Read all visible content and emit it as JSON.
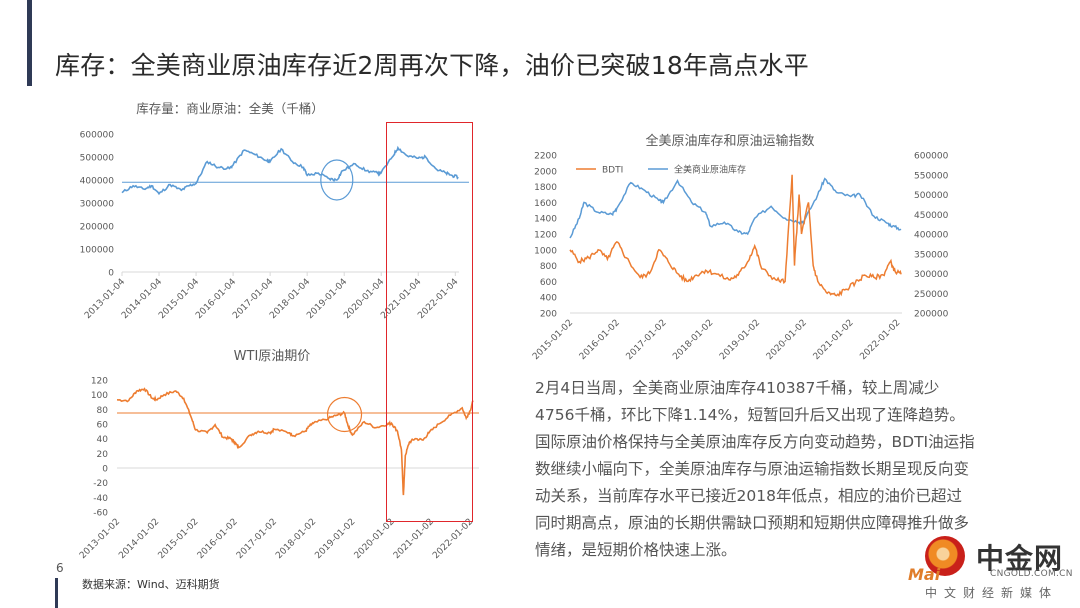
{
  "slide": {
    "title": "库存：全美商业原油库存近2周再次下降，油价已突破18年高点水平",
    "page_number": "6",
    "source": "数据来源：Wind、迈科期货",
    "paragraph": "2月4日当周，全美商业原油库存410387千桶，较上周减少4756千桶，环比下降1.14%，短暂回升后又出现了连降趋势。国际原油价格保持与全美原油库存反方向变动趋势，BDTI油运指数继续小幅向下，全美原油库存与原油运输指数长期呈现反向变动关系，当前库存水平已接近2018年低点，相应的油价已超过同时期高点，原油的长期供需缺口预期和短期供应障碍推升做多情绪，是短期价格快速上涨。"
  },
  "logo": {
    "cn": "中金网",
    "url": "CNGOLD.COM.CN",
    "sub": "中文财经新媒体",
    "brand": "Mai"
  },
  "colors": {
    "blue": "#5b9bd5",
    "orange": "#ed7d31",
    "red_box": "#e0262b",
    "axis_text": "#595959",
    "grid": "#d9d9d9"
  },
  "chart_data": [
    {
      "id": "inventory",
      "type": "line",
      "title": "库存量：商业原油：全美（千桶）",
      "x_ticks": [
        "2013-01-04",
        "2014-01-04",
        "2015-01-04",
        "2016-01-04",
        "2017-01-04",
        "2018-01-04",
        "2019-01-04",
        "2020-01-04",
        "2021-01-04",
        "2022-01-04"
      ],
      "xlim": [
        2013.0,
        2022.1
      ],
      "ylim": [
        0,
        600000
      ],
      "y_ticks": [
        0,
        100000,
        200000,
        300000,
        400000,
        500000,
        600000
      ],
      "reference_line": 390000,
      "highlight_circle": {
        "x": 2018.8,
        "y": 400000
      },
      "series": [
        {
          "points": [
            [
              2013.0,
              345000
            ],
            [
              2013.3,
              375000
            ],
            [
              2013.6,
              360000
            ],
            [
              2013.8,
              375000
            ],
            [
              2014.0,
              340000
            ],
            [
              2014.3,
              380000
            ],
            [
              2014.6,
              355000
            ],
            [
              2014.8,
              375000
            ],
            [
              2015.0,
              385000
            ],
            [
              2015.3,
              480000
            ],
            [
              2015.6,
              455000
            ],
            [
              2015.9,
              450000
            ],
            [
              2016.0,
              465000
            ],
            [
              2016.3,
              530000
            ],
            [
              2016.6,
              510000
            ],
            [
              2016.9,
              485000
            ],
            [
              2017.0,
              480000
            ],
            [
              2017.3,
              535000
            ],
            [
              2017.6,
              480000
            ],
            [
              2017.9,
              455000
            ],
            [
              2018.0,
              420000
            ],
            [
              2018.3,
              430000
            ],
            [
              2018.6,
              405000
            ],
            [
              2018.8,
              400000
            ],
            [
              2018.95,
              440000
            ],
            [
              2019.3,
              470000
            ],
            [
              2019.6,
              440000
            ],
            [
              2019.9,
              430000
            ],
            [
              2020.0,
              432000
            ],
            [
              2020.3,
              500000
            ],
            [
              2020.45,
              540000
            ],
            [
              2020.7,
              505000
            ],
            [
              2021.0,
              495000
            ],
            [
              2021.2,
              500000
            ],
            [
              2021.5,
              445000
            ],
            [
              2021.75,
              430000
            ],
            [
              2021.9,
              420000
            ],
            [
              2022.08,
              412000
            ]
          ]
        }
      ]
    },
    {
      "id": "wti",
      "type": "line",
      "title": "WTI原油期价",
      "x_ticks": [
        "2013-01-02",
        "2014-01-02",
        "2015-01-02",
        "2016-01-02",
        "2017-01-02",
        "2018-01-02",
        "2019-01-02",
        "2020-01-02",
        "2021-01-02",
        "2022-01-02"
      ],
      "xlim": [
        2013.0,
        2022.1
      ],
      "ylim": [
        -60,
        120
      ],
      "y_ticks": [
        -60,
        -40,
        -20,
        0,
        20,
        40,
        60,
        80,
        100,
        120
      ],
      "reference_line": 75,
      "highlight_circle": {
        "x": 2018.8,
        "y": 73
      },
      "highlight_box": {
        "x0": 2020.0,
        "x1": 2022.05
      },
      "series": [
        {
          "points": [
            [
              2013.0,
              93
            ],
            [
              2013.3,
              92
            ],
            [
              2013.5,
              105
            ],
            [
              2013.7,
              108
            ],
            [
              2013.9,
              95
            ],
            [
              2014.0,
              93
            ],
            [
              2014.2,
              100
            ],
            [
              2014.5,
              105
            ],
            [
              2014.7,
              95
            ],
            [
              2014.9,
              68
            ],
            [
              2015.0,
              52
            ],
            [
              2015.3,
              48
            ],
            [
              2015.5,
              59
            ],
            [
              2015.7,
              42
            ],
            [
              2015.9,
              40
            ],
            [
              2016.0,
              35
            ],
            [
              2016.1,
              28
            ],
            [
              2016.4,
              45
            ],
            [
              2016.6,
              50
            ],
            [
              2016.9,
              48
            ],
            [
              2017.0,
              53
            ],
            [
              2017.4,
              48
            ],
            [
              2017.5,
              44
            ],
            [
              2017.8,
              50
            ],
            [
              2017.9,
              57
            ],
            [
              2018.0,
              61
            ],
            [
              2018.4,
              68
            ],
            [
              2018.6,
              72
            ],
            [
              2018.8,
              75
            ],
            [
              2018.9,
              56
            ],
            [
              2019.0,
              45
            ],
            [
              2019.3,
              63
            ],
            [
              2019.6,
              55
            ],
            [
              2019.9,
              60
            ],
            [
              2020.0,
              61
            ],
            [
              2020.15,
              50
            ],
            [
              2020.25,
              25
            ],
            [
              2020.3,
              -37
            ],
            [
              2020.35,
              17
            ],
            [
              2020.45,
              35
            ],
            [
              2020.6,
              40
            ],
            [
              2020.8,
              38
            ],
            [
              2020.95,
              48
            ],
            [
              2021.2,
              60
            ],
            [
              2021.5,
              72
            ],
            [
              2021.8,
              82
            ],
            [
              2021.9,
              68
            ],
            [
              2022.0,
              78
            ],
            [
              2022.08,
              92
            ]
          ]
        }
      ]
    },
    {
      "id": "bdti",
      "type": "line",
      "title": "全美原油库存和原油运输指数",
      "x_ticks": [
        "2015-01-02",
        "2016-01-02",
        "2017-01-02",
        "2018-01-02",
        "2019-01-02",
        "2020-01-02",
        "2021-01-02",
        "2022-01-02"
      ],
      "xlim": [
        2015.0,
        2022.1
      ],
      "ylim_left": [
        200,
        2200
      ],
      "y_ticks_left": [
        200,
        400,
        600,
        800,
        1000,
        1200,
        1400,
        1600,
        1800,
        2000,
        2200
      ],
      "ylim_right": [
        200000,
        600000
      ],
      "y_ticks_right": [
        200000,
        250000,
        300000,
        350000,
        400000,
        450000,
        500000,
        550000,
        600000
      ],
      "legend": [
        "BDTI",
        "全美商业原油库存"
      ],
      "series": [
        {
          "name": "BDTI",
          "axis": "left",
          "points": [
            [
              2015.0,
              1000
            ],
            [
              2015.2,
              850
            ],
            [
              2015.4,
              900
            ],
            [
              2015.6,
              1000
            ],
            [
              2015.8,
              880
            ],
            [
              2016.0,
              1100
            ],
            [
              2016.2,
              900
            ],
            [
              2016.5,
              650
            ],
            [
              2016.7,
              700
            ],
            [
              2016.9,
              1000
            ],
            [
              2017.1,
              850
            ],
            [
              2017.3,
              700
            ],
            [
              2017.5,
              600
            ],
            [
              2017.7,
              680
            ],
            [
              2017.9,
              740
            ],
            [
              2018.1,
              700
            ],
            [
              2018.4,
              620
            ],
            [
              2018.6,
              680
            ],
            [
              2018.8,
              850
            ],
            [
              2018.95,
              1050
            ],
            [
              2019.1,
              760
            ],
            [
              2019.4,
              620
            ],
            [
              2019.6,
              600
            ],
            [
              2019.75,
              1950
            ],
            [
              2019.8,
              800
            ],
            [
              2019.9,
              1700
            ],
            [
              2019.95,
              1200
            ],
            [
              2020.1,
              1600
            ],
            [
              2020.2,
              800
            ],
            [
              2020.3,
              600
            ],
            [
              2020.5,
              450
            ],
            [
              2020.7,
              420
            ],
            [
              2020.9,
              500
            ],
            [
              2021.1,
              580
            ],
            [
              2021.3,
              680
            ],
            [
              2021.5,
              650
            ],
            [
              2021.7,
              680
            ],
            [
              2021.85,
              850
            ],
            [
              2021.95,
              730
            ],
            [
              2022.08,
              690
            ]
          ]
        },
        {
          "name": "全美商业原油库存",
          "axis": "right",
          "points": [
            [
              2015.0,
              390000
            ],
            [
              2015.2,
              440000
            ],
            [
              2015.3,
              480000
            ],
            [
              2015.6,
              455000
            ],
            [
              2015.9,
              450000
            ],
            [
              2016.0,
              465000
            ],
            [
              2016.3,
              530000
            ],
            [
              2016.6,
              510000
            ],
            [
              2016.9,
              485000
            ],
            [
              2017.0,
              480000
            ],
            [
              2017.3,
              535000
            ],
            [
              2017.6,
              480000
            ],
            [
              2017.9,
              455000
            ],
            [
              2018.0,
              420000
            ],
            [
              2018.3,
              430000
            ],
            [
              2018.6,
              405000
            ],
            [
              2018.8,
              400000
            ],
            [
              2018.95,
              440000
            ],
            [
              2019.3,
              470000
            ],
            [
              2019.6,
              440000
            ],
            [
              2019.9,
              430000
            ],
            [
              2020.0,
              432000
            ],
            [
              2020.3,
              500000
            ],
            [
              2020.45,
              540000
            ],
            [
              2020.7,
              505000
            ],
            [
              2021.0,
              495000
            ],
            [
              2021.2,
              500000
            ],
            [
              2021.5,
              445000
            ],
            [
              2021.75,
              430000
            ],
            [
              2021.9,
              420000
            ],
            [
              2022.08,
              412000
            ]
          ]
        }
      ]
    }
  ]
}
